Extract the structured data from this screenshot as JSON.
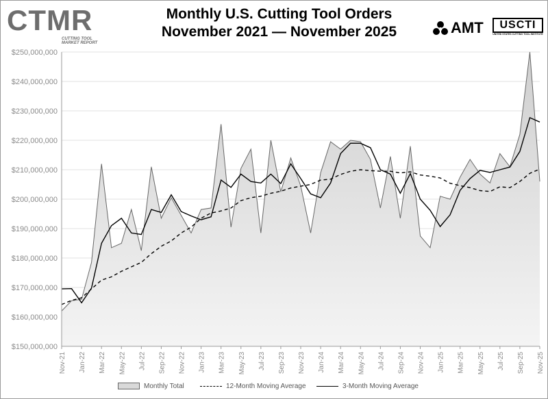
{
  "header": {
    "title_line1": "Monthly U.S. Cutting Tool Orders",
    "title_line2": "November 2021 — November 2025"
  },
  "logos": {
    "ctmr_text": "CTMR",
    "ctmr_sub": "CUTTING TOOL MARKET REPORT",
    "amt_text": "AMT",
    "usc_text": "USCTI",
    "usc_sub": "UNITED STATES CUTTING TOOL INSTITUTE"
  },
  "colors": {
    "area_fill": "#d9d9d9",
    "area_stroke": "#666666",
    "line": "#000000",
    "axis_text": "#8a8a8a",
    "grid": "#e0e0e0"
  },
  "chart_data": {
    "type": "area",
    "title": "Monthly U.S. Cutting Tool Orders November 2021 — November 2025",
    "ylim": [
      150000000,
      250000000
    ],
    "y_ticks": [
      "$150,000,000",
      "$160,000,000",
      "$170,000,000",
      "$180,000,000",
      "$190,000,000",
      "$200,000,000",
      "$210,000,000",
      "$220,000,000",
      "$230,000,000",
      "$240,000,000",
      "$250,000,000"
    ],
    "x_tick_labels": [
      "Nov-21",
      "Jan-22",
      "Mar-22",
      "May-22",
      "Jul-22",
      "Sep-22",
      "Nov-22",
      "Jan-23",
      "Mar-23",
      "May-23",
      "Jul-23",
      "Sep-23",
      "Nov-23",
      "Jan-24",
      "Mar-24",
      "May-24",
      "Jul-24",
      "Sep-24",
      "Nov-24",
      "Jan-25",
      "Mar-25",
      "May-25",
      "Jul-25",
      "Sep-25",
      "Nov-25"
    ],
    "x": [
      "Nov-21",
      "Dec-21",
      "Jan-22",
      "Feb-22",
      "Mar-22",
      "Apr-22",
      "May-22",
      "Jun-22",
      "Jul-22",
      "Aug-22",
      "Sep-22",
      "Oct-22",
      "Nov-22",
      "Dec-22",
      "Jan-23",
      "Feb-23",
      "Mar-23",
      "Apr-23",
      "May-23",
      "Jun-23",
      "Jul-23",
      "Aug-23",
      "Sep-23",
      "Oct-23",
      "Nov-23",
      "Dec-23",
      "Jan-24",
      "Feb-24",
      "Mar-24",
      "Apr-24",
      "May-24",
      "Jun-24",
      "Jul-24",
      "Aug-24",
      "Sep-24",
      "Oct-24",
      "Nov-24",
      "Dec-24",
      "Jan-25",
      "Feb-25",
      "Mar-25",
      "Apr-25",
      "May-25",
      "Jun-25",
      "Jul-25",
      "Aug-25",
      "Sep-25",
      "Oct-25",
      "Nov-25"
    ],
    "series": [
      {
        "name": "Monthly Total",
        "style": "area",
        "values": [
          162000000,
          165500000,
          166000000,
          178500000,
          212000000,
          183500000,
          185000000,
          196500000,
          182500000,
          211000000,
          193500000,
          200500000,
          194500000,
          188500000,
          196500000,
          197000000,
          225500000,
          190500000,
          210500000,
          217000000,
          188500000,
          220000000,
          202500000,
          214000000,
          204500000,
          188500000,
          209000000,
          219500000,
          217000000,
          220000000,
          219500000,
          213500000,
          197000000,
          214500000,
          193500000,
          218000000,
          187500000,
          183500000,
          201000000,
          200000000,
          207500000,
          213500000,
          208500000,
          205500000,
          215500000,
          211000000,
          222000000,
          250000000,
          206000000
        ]
      },
      {
        "name": "12-Month Moving Average",
        "style": "dashed",
        "values": [
          164200000,
          165600000,
          166500000,
          169500000,
          172500000,
          173600000,
          175500000,
          177000000,
          178500000,
          181500000,
          184000000,
          185800000,
          188500000,
          190500000,
          193500000,
          195300000,
          196000000,
          197000000,
          199500000,
          200500000,
          201000000,
          202000000,
          202700000,
          203800000,
          204400000,
          205000000,
          206500000,
          206800000,
          208400000,
          209500000,
          210000000,
          209700000,
          209500000,
          209500000,
          208900000,
          209300000,
          208200000,
          207800000,
          207200000,
          205400000,
          204600000,
          203900000,
          202900000,
          202600000,
          204200000,
          203900000,
          206000000,
          208800000,
          210200000
        ]
      },
      {
        "name": "3-Month Moving Average",
        "style": "solid",
        "values": [
          169500000,
          169600000,
          164800000,
          169800000,
          185000000,
          191000000,
          193500000,
          188500000,
          188000000,
          196500000,
          195500000,
          201500000,
          195800000,
          194300000,
          193000000,
          194000000,
          206500000,
          204000000,
          208500000,
          206000000,
          205500000,
          208500000,
          205300000,
          212000000,
          207000000,
          201800000,
          200500000,
          205500000,
          215500000,
          219000000,
          219000000,
          217500000,
          210000000,
          208500000,
          202000000,
          208700000,
          200000000,
          196200000,
          190700000,
          194700000,
          203000000,
          207000000,
          209800000,
          209100000,
          210000000,
          210900000,
          216200000,
          227700000,
          226200000
        ]
      }
    ]
  },
  "legend": {
    "area_label": "Monthly Total",
    "ma12_label": "12-Month Moving Average",
    "ma3_label": "3-Month Moving Average"
  }
}
